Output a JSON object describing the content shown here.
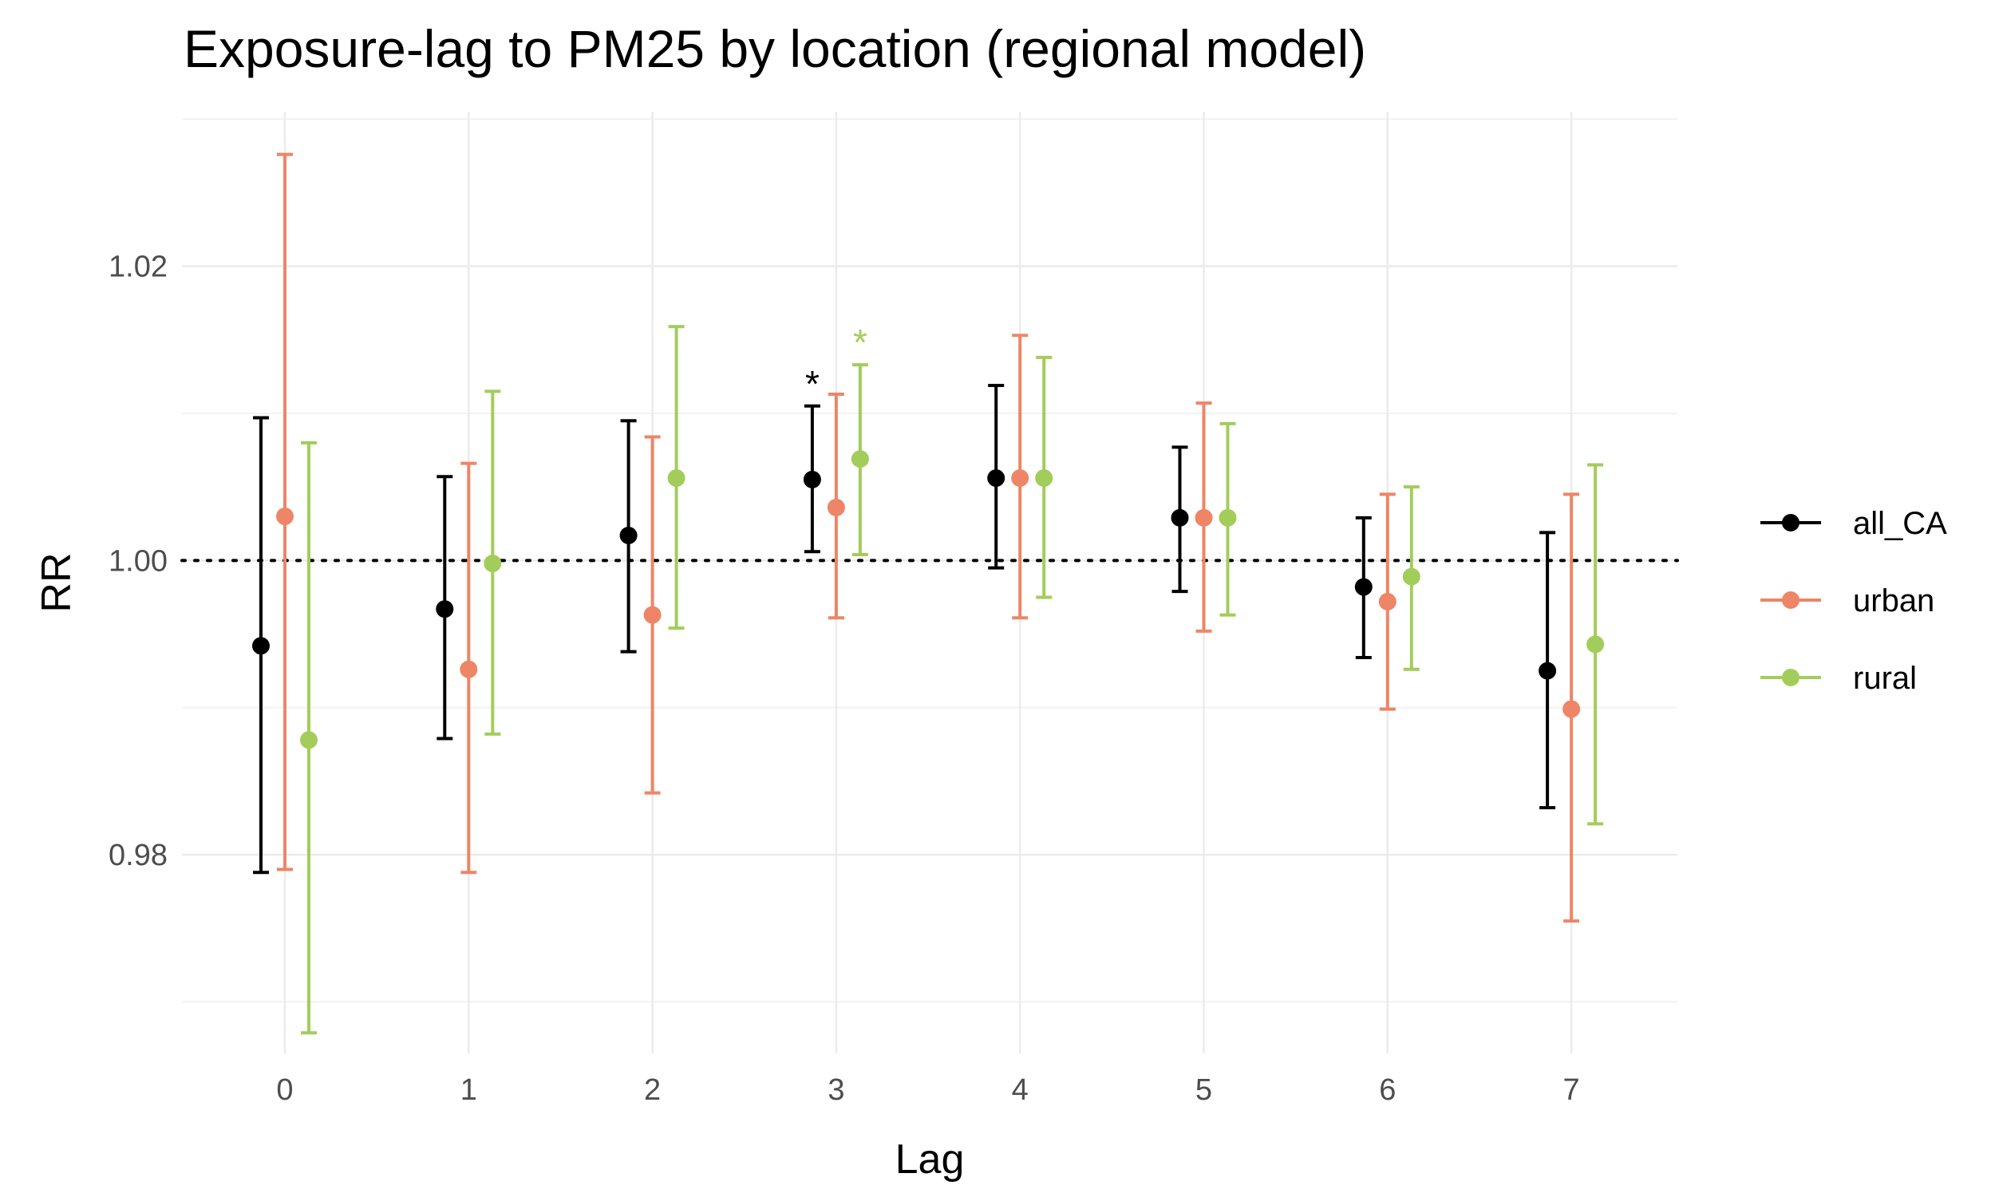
{
  "chart_data": {
    "type": "scatter",
    "title": "Exposure-lag to PM25 by location (regional model)",
    "xlabel": "Lag",
    "ylabel": "RR",
    "categories": [
      "0",
      "1",
      "2",
      "3",
      "4",
      "5",
      "6",
      "7"
    ],
    "ylim": [
      0.9665,
      1.0305
    ],
    "yticks": [
      {
        "value": 0.98,
        "label": "0.98"
      },
      {
        "value": 1.0,
        "label": "1.00"
      },
      {
        "value": 1.02,
        "label": "1.02"
      }
    ],
    "yminor": [
      0.97,
      0.99,
      1.01,
      1.03
    ],
    "reference_line": 1.0,
    "grid": true,
    "legend_position": "right",
    "series": [
      {
        "name": "all_CA",
        "color": "#000000",
        "estimate": [
          0.9942,
          0.9967,
          1.0017,
          1.0055,
          1.0056,
          1.0029,
          0.9982,
          0.9925
        ],
        "lower": [
          0.9788,
          0.9879,
          0.9938,
          1.0006,
          0.9995,
          0.9979,
          0.9934,
          0.9832
        ],
        "upper": [
          1.0097,
          1.0057,
          1.0095,
          1.0105,
          1.0119,
          1.0077,
          1.0029,
          1.0019
        ],
        "significant_label": [
          null,
          null,
          null,
          "*",
          null,
          null,
          null,
          null
        ]
      },
      {
        "name": "urban",
        "color": "#ee8566",
        "estimate": [
          1.003,
          0.9926,
          0.9963,
          1.0036,
          1.0056,
          1.0029,
          0.9972,
          0.9899
        ],
        "lower": [
          0.979,
          0.9788,
          0.9842,
          0.9961,
          0.9961,
          0.9952,
          0.9899,
          0.9755
        ],
        "upper": [
          1.0276,
          1.0066,
          1.0084,
          1.0113,
          1.0153,
          1.0107,
          1.0045,
          1.0045
        ],
        "significant_label": [
          null,
          null,
          null,
          null,
          null,
          null,
          null,
          null
        ]
      },
      {
        "name": "rural",
        "color": "#a2cd5a",
        "estimate": [
          0.9878,
          0.9998,
          1.0056,
          1.0069,
          1.0056,
          1.0029,
          0.9989,
          0.9943
        ],
        "lower": [
          0.9679,
          0.9882,
          0.9954,
          1.0004,
          0.9975,
          0.9963,
          0.9926,
          0.9821
        ],
        "upper": [
          1.008,
          1.0115,
          1.0159,
          1.0133,
          1.0138,
          1.0093,
          1.005,
          1.0065
        ],
        "significant_label": [
          null,
          null,
          null,
          "*",
          null,
          null,
          null,
          null
        ]
      }
    ]
  }
}
